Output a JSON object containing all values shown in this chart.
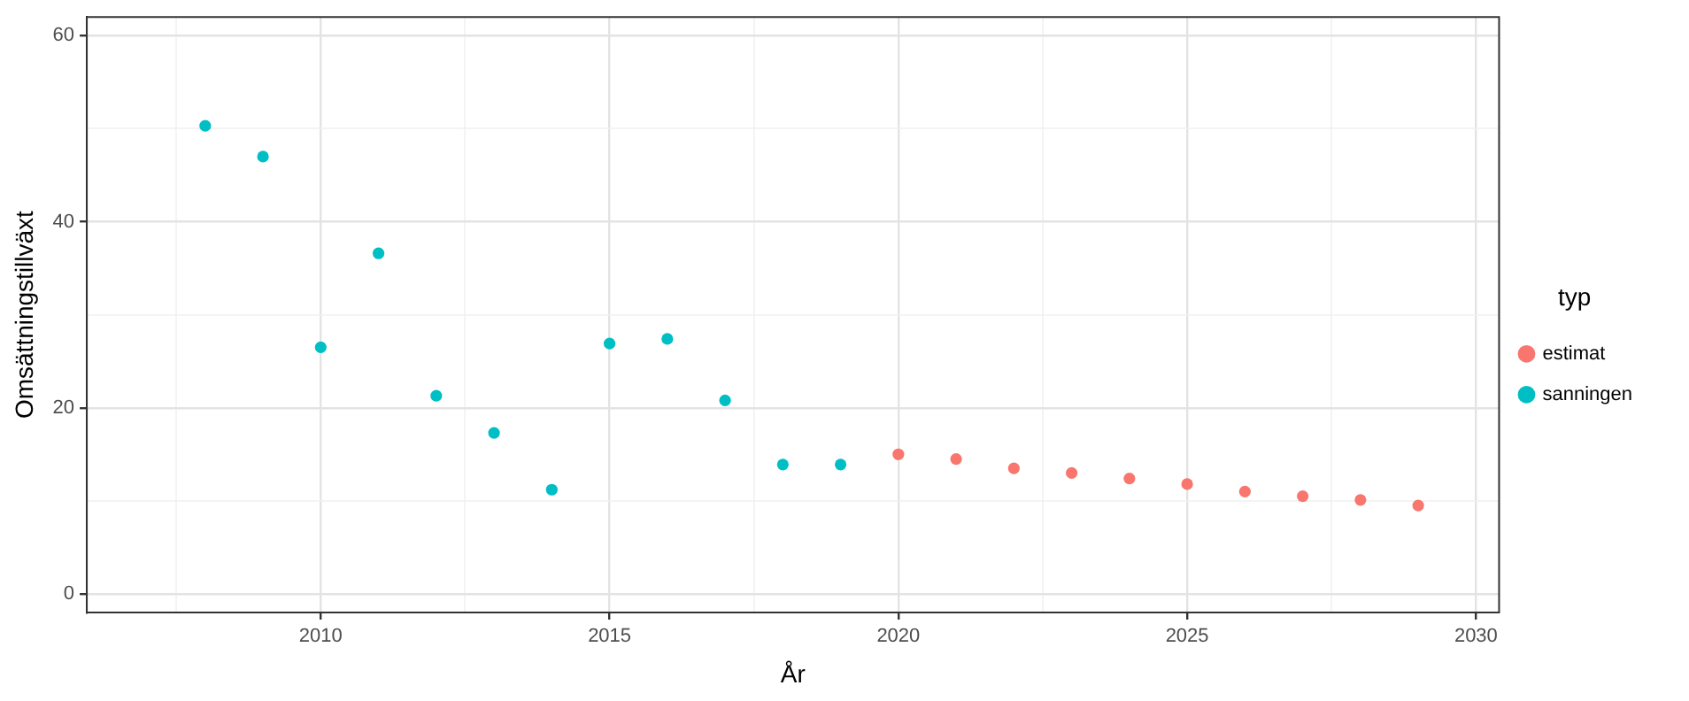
{
  "chart_data": {
    "type": "scatter",
    "xlabel": "År",
    "ylabel": "Omsättningstillväxt",
    "legend_title": "typ",
    "legend": "right",
    "grid": true,
    "marker": "circle",
    "xlim": [
      2005.95,
      2030.4
    ],
    "ylim": [
      -2,
      62
    ],
    "xticks": [
      {
        "value": 2007.5,
        "label": null
      },
      2010,
      {
        "value": 2012.5,
        "label": null
      },
      2015,
      {
        "value": 2017.5,
        "label": null
      },
      2020,
      {
        "value": 2022.5,
        "label": null
      },
      2025,
      {
        "value": 2027.5,
        "label": null
      },
      2030
    ],
    "yticks": [
      0,
      {
        "value": 10,
        "label": null
      },
      20,
      {
        "value": 30,
        "label": null
      },
      40,
      {
        "value": 50,
        "label": null
      },
      60
    ],
    "series": [
      {
        "name": "estimat",
        "color": "#f8766d",
        "x": [
          2020,
          2021,
          2022,
          2023,
          2024,
          2025,
          2026,
          2027,
          2028,
          2029
        ],
        "values": [
          15.0,
          14.5,
          13.5,
          13.0,
          12.4,
          11.8,
          11.0,
          10.5,
          10.1,
          9.5
        ]
      },
      {
        "name": "sanningen",
        "color": "#00bfc4",
        "x": [
          2008,
          2009,
          2010,
          2011,
          2012,
          2013,
          2014,
          2015,
          2016,
          2017,
          2018,
          2019
        ],
        "values": [
          50.3,
          47.0,
          26.5,
          36.6,
          21.3,
          17.3,
          11.2,
          26.9,
          27.4,
          20.8,
          13.9,
          13.9
        ]
      }
    ]
  }
}
